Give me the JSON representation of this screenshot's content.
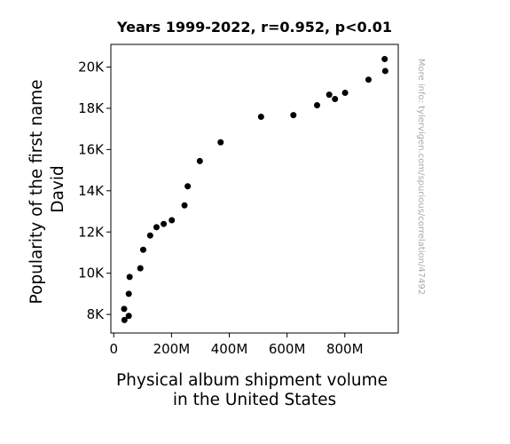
{
  "chart_data": {
    "type": "scatter",
    "title": "Years 1999-2022, r=0.952, p<0.01",
    "xlabel_lines": [
      "Physical album shipment volume",
      "in the United States"
    ],
    "ylabel_lines": [
      "Popularity of the first name",
      "David"
    ],
    "watermark": "More info: tylervigen.com/spurious/correlation/47492",
    "xlim": [
      -10,
      985
    ],
    "ylim": [
      7100,
      21100
    ],
    "x_unit": "million albums",
    "x_ticks": [
      {
        "value": 0,
        "label": "0"
      },
      {
        "value": 200,
        "label": "200M"
      },
      {
        "value": 400,
        "label": "400M"
      },
      {
        "value": 600,
        "label": "600M"
      },
      {
        "value": 800,
        "label": "800M"
      }
    ],
    "y_ticks": [
      {
        "value": 8000,
        "label": "8K"
      },
      {
        "value": 10000,
        "label": "10K"
      },
      {
        "value": 12000,
        "label": "12K"
      },
      {
        "value": 14000,
        "label": "14K"
      },
      {
        "value": 16000,
        "label": "16K"
      },
      {
        "value": 18000,
        "label": "18K"
      },
      {
        "value": 20000,
        "label": "20K"
      }
    ],
    "grid": false,
    "point_color": "#000000",
    "points": [
      {
        "x": 938,
        "y": 20390
      },
      {
        "x": 940,
        "y": 19810
      },
      {
        "x": 882,
        "y": 19390
      },
      {
        "x": 801,
        "y": 18750
      },
      {
        "x": 766,
        "y": 18450
      },
      {
        "x": 746,
        "y": 18660
      },
      {
        "x": 704,
        "y": 18150
      },
      {
        "x": 622,
        "y": 17670
      },
      {
        "x": 510,
        "y": 17590
      },
      {
        "x": 370,
        "y": 16350
      },
      {
        "x": 298,
        "y": 15440
      },
      {
        "x": 256,
        "y": 14220
      },
      {
        "x": 245,
        "y": 13290
      },
      {
        "x": 201,
        "y": 12570
      },
      {
        "x": 173,
        "y": 12390
      },
      {
        "x": 148,
        "y": 12230
      },
      {
        "x": 126,
        "y": 11830
      },
      {
        "x": 102,
        "y": 11140
      },
      {
        "x": 92,
        "y": 10240
      },
      {
        "x": 55,
        "y": 9820
      },
      {
        "x": 52,
        "y": 9000
      },
      {
        "x": 52,
        "y": 7930
      },
      {
        "x": 36,
        "y": 8270
      },
      {
        "x": 37,
        "y": 7730
      }
    ]
  }
}
